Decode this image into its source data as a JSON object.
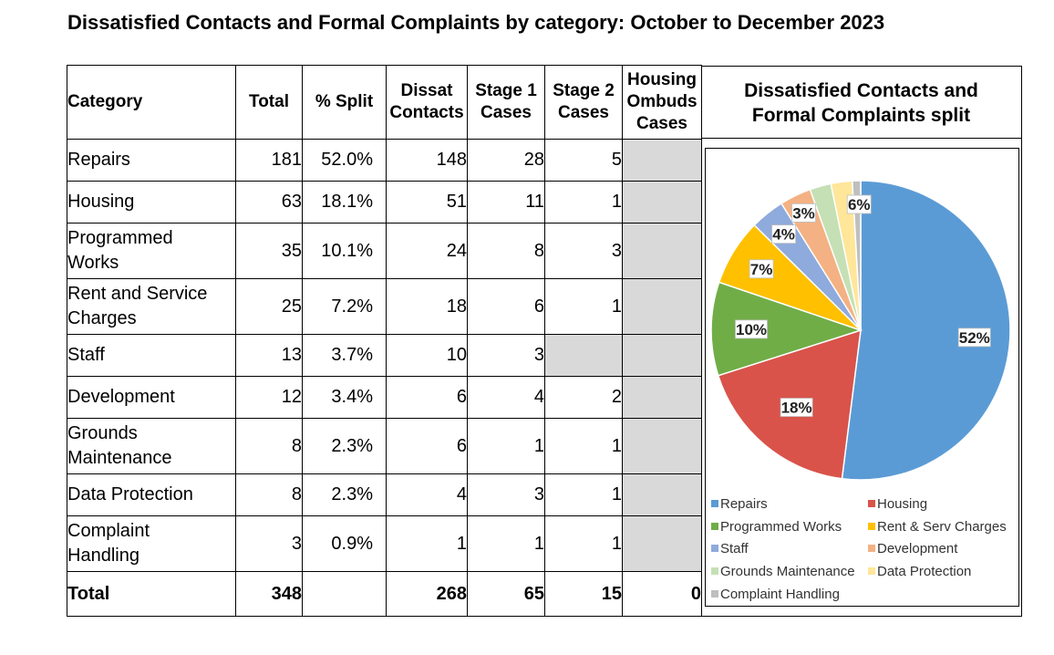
{
  "title": "Dissatisfied Contacts and Formal Complaints by category: October to December 2023",
  "headers": {
    "category": "Category",
    "total": "Total",
    "split": "% Split",
    "dissat": [
      "Dissat",
      "Contacts"
    ],
    "stage1": [
      "Stage 1",
      "Cases"
    ],
    "stage2": [
      "Stage 2",
      "Cases"
    ],
    "ombuds": [
      "Housing",
      "Ombuds",
      "Cases"
    ]
  },
  "rows": [
    {
      "category": [
        "Repairs"
      ],
      "total": "181",
      "split": "52.0%",
      "dissat": "148",
      "stage1": "28",
      "stage2": "5",
      "ombuds": ""
    },
    {
      "category": [
        "Housing"
      ],
      "total": "63",
      "split": "18.1%",
      "dissat": "51",
      "stage1": "11",
      "stage2": "1",
      "ombuds": ""
    },
    {
      "category": [
        "Programmed",
        "Works"
      ],
      "total": "35",
      "split": "10.1%",
      "dissat": "24",
      "stage1": "8",
      "stage2": "3",
      "ombuds": ""
    },
    {
      "category": [
        "Rent and Service",
        "Charges"
      ],
      "total": "25",
      "split": "7.2%",
      "dissat": "18",
      "stage1": "6",
      "stage2": "1",
      "ombuds": ""
    },
    {
      "category": [
        "Staff"
      ],
      "total": "13",
      "split": "3.7%",
      "dissat": "10",
      "stage1": "3",
      "stage2": "",
      "ombuds": ""
    },
    {
      "category": [
        "Development"
      ],
      "total": "12",
      "split": "3.4%",
      "dissat": "6",
      "stage1": "4",
      "stage2": "2",
      "ombuds": ""
    },
    {
      "category": [
        "Grounds",
        "Maintenance"
      ],
      "total": "8",
      "split": "2.3%",
      "dissat": "6",
      "stage1": "1",
      "stage2": "1",
      "ombuds": ""
    },
    {
      "category": [
        "Data Protection"
      ],
      "total": "8",
      "split": "2.3%",
      "dissat": "4",
      "stage1": "3",
      "stage2": "1",
      "ombuds": ""
    },
    {
      "category": [
        "Complaint",
        "Handling"
      ],
      "total": "3",
      "split": "0.9%",
      "dissat": "1",
      "stage1": "1",
      "stage2": "1",
      "ombuds": ""
    }
  ],
  "total_row": {
    "label": "Total",
    "total": "348",
    "split": "",
    "dissat": "268",
    "stage1": "65",
    "stage2": "15",
    "ombuds": "0"
  },
  "chart_title": [
    "Dissatisfied Contacts and",
    "Formal Complaints split"
  ],
  "chart_data": {
    "type": "pie",
    "title": "Dissatisfied Contacts and Formal Complaints split",
    "legend_position": "bottom",
    "slices": [
      {
        "name": "Repairs",
        "value": 52.0,
        "label": "52%",
        "color": "#5b9bd5"
      },
      {
        "name": "Housing",
        "value": 18.1,
        "label": "18%",
        "color": "#d9534a"
      },
      {
        "name": "Programmed Works",
        "value": 10.1,
        "label": "10%",
        "color": "#70ad47"
      },
      {
        "name": "Rent & Serv Charges",
        "value": 7.2,
        "label": "7%",
        "color": "#ffc000"
      },
      {
        "name": "Staff",
        "value": 3.7,
        "label": "4%",
        "color": "#8faadc"
      },
      {
        "name": "Development",
        "value": 3.4,
        "label": "3%",
        "color": "#f4b183"
      },
      {
        "name": "Grounds Maintenance",
        "value": 2.3,
        "label": "",
        "color": "#c5e0b4"
      },
      {
        "name": "Data Protection",
        "value": 2.3,
        "label": "",
        "color": "#ffe699"
      },
      {
        "name": "Complaint Handling",
        "value": 0.9,
        "label": "",
        "color": "#bfbfbf"
      }
    ],
    "extra_labels": [
      {
        "label": "6%",
        "covers": [
          "Grounds Maintenance",
          "Data Protection",
          "Complaint Handling"
        ]
      }
    ]
  }
}
